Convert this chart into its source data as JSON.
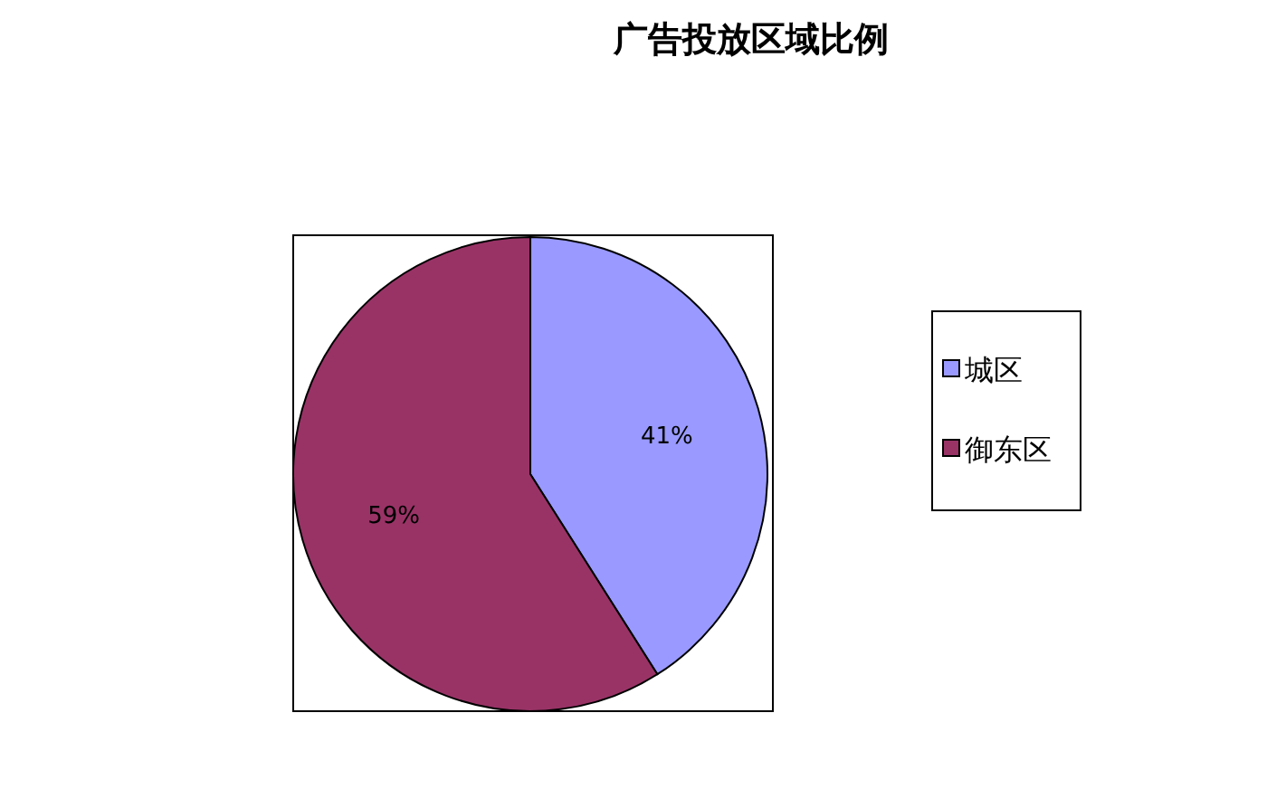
{
  "chart_data": {
    "type": "pie",
    "title": "广告投放区域比例",
    "categories": [
      "城区",
      "御东区"
    ],
    "values": [
      41,
      59
    ],
    "colors": [
      "#9999ff",
      "#993366"
    ],
    "value_labels": [
      "41%",
      "59%"
    ],
    "legend": "right"
  }
}
